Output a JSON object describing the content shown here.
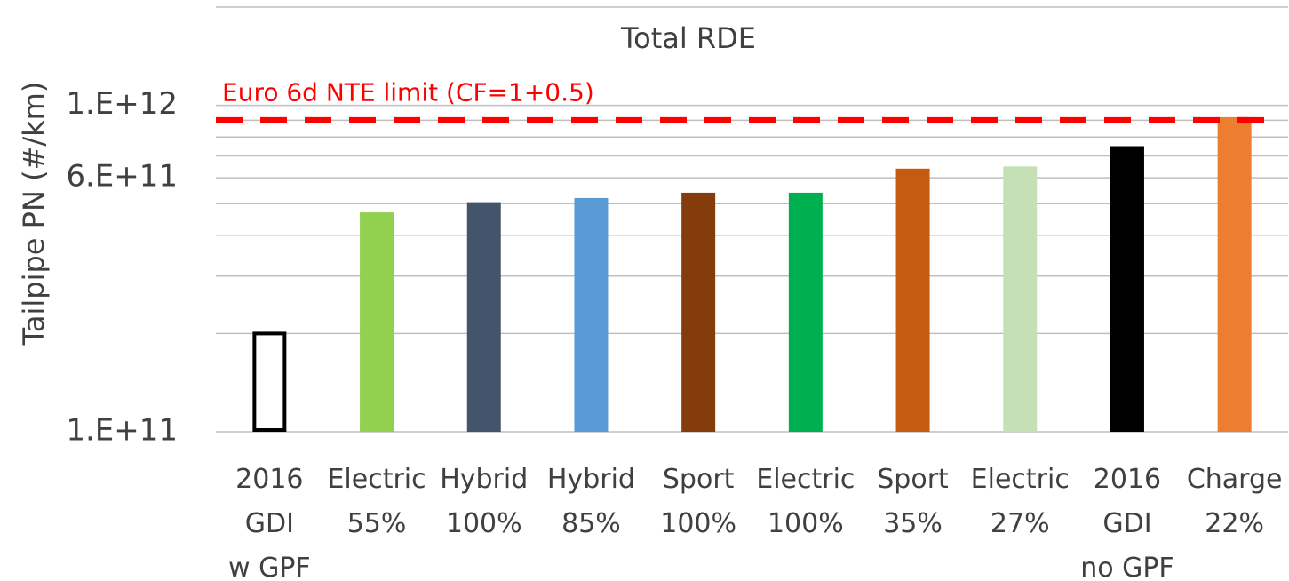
{
  "chart_data": {
    "type": "bar",
    "title": "Total RDE",
    "y_label": "Tailpipe PN (#/km)",
    "log_scale": true,
    "categories": [
      [
        "2016",
        "GDI",
        "w GPF"
      ],
      [
        "Electric",
        "55%"
      ],
      [
        "Hybrid",
        "100%"
      ],
      [
        "Hybrid",
        "85%"
      ],
      [
        "Sport",
        "100%"
      ],
      [
        "Electric",
        "100%"
      ],
      [
        "Sport",
        "35%"
      ],
      [
        "Electric",
        "27%"
      ],
      [
        "2016",
        "GDI",
        "no GPF"
      ],
      [
        "Charge",
        "22%"
      ]
    ],
    "values": [
      200000000000,
      470000000000,
      505000000000,
      520000000000,
      540000000000,
      540000000000,
      640000000000,
      650000000000,
      750000000000,
      920000000000
    ],
    "colors": [
      "#ffffff",
      "#92d050",
      "#44546a",
      "#5b9bd5",
      "#843c0c",
      "#00b050",
      "#c55a11",
      "#c5e0b4",
      "#000000",
      "#ed7d31"
    ],
    "outline": [
      "#000000",
      null,
      null,
      null,
      null,
      null,
      null,
      null,
      null,
      null
    ],
    "ylim": [
      100000000000,
      2000000000000
    ],
    "yticks": [
      {
        "value": 100000000000,
        "label": "1.E+11"
      },
      {
        "value": 600000000000,
        "label": "6.E+11"
      },
      {
        "value": 1000000000000,
        "label": "1.E+12"
      }
    ],
    "minor_grid": [
      200000000000,
      300000000000,
      400000000000,
      500000000000,
      700000000000,
      800000000000,
      900000000000,
      2000000000000
    ],
    "grid": true,
    "reference_line": {
      "value": 900000000000,
      "label": "Euro 6d NTE limit (CF=1+0.5)",
      "color": "#ff0000"
    }
  }
}
